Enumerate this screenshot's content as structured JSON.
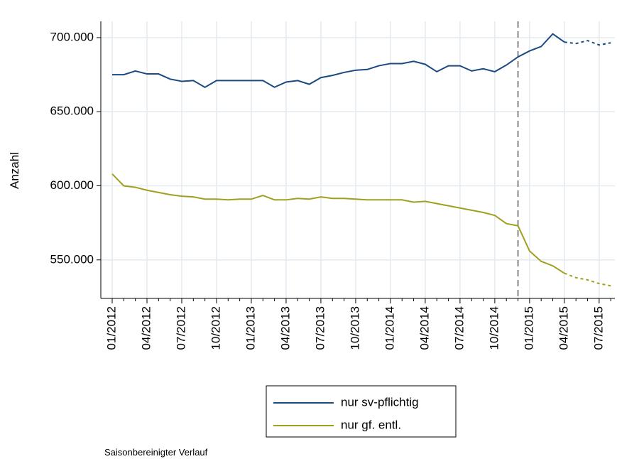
{
  "chart_data": {
    "type": "line",
    "y_label": "Anzahl",
    "footnote": "Saisonbereinigter Verlauf",
    "categories": [
      "01/2012",
      null,
      null,
      "04/2012",
      null,
      null,
      "07/2012",
      null,
      null,
      "10/2012",
      null,
      null,
      "01/2013",
      null,
      null,
      "04/2013",
      null,
      null,
      "07/2013",
      null,
      null,
      "10/2013",
      null,
      null,
      "01/2014",
      null,
      null,
      "04/2014",
      null,
      null,
      "07/2014",
      null,
      null,
      "10/2014",
      null,
      null,
      "01/2015",
      null,
      null,
      "04/2015",
      null,
      null,
      "07/2015",
      null
    ],
    "series": [
      {
        "name": "nur sv-pflichtig",
        "color": "#1a4a80",
        "values": [
          675000,
          675000,
          677500,
          675500,
          675500,
          672000,
          670500,
          671000,
          666500,
          671000,
          671000,
          671000,
          671000,
          671000,
          666500,
          670000,
          671000,
          668500,
          673000,
          674500,
          676500,
          678000,
          678500,
          681000,
          682500,
          682500,
          684000,
          682000,
          677000,
          681000,
          681000,
          677500,
          679000,
          677000,
          681500,
          687000,
          691000,
          694000,
          702500,
          697000,
          696000,
          698000,
          695000,
          696500
        ]
      },
      {
        "name": "nur gf. entl.",
        "color": "#a0a020",
        "values": [
          608000,
          600000,
          599000,
          597000,
          595500,
          594000,
          593000,
          592500,
          591000,
          591000,
          590500,
          591000,
          591000,
          593500,
          590500,
          590500,
          591500,
          591000,
          592500,
          591500,
          591500,
          591000,
          590500,
          590500,
          590500,
          590500,
          589000,
          589500,
          588000,
          586500,
          585000,
          583500,
          582000,
          580000,
          574500,
          573000,
          556000,
          549000,
          546000,
          541000,
          538000,
          536500,
          534000,
          532500
        ]
      }
    ],
    "ylim": [
      524000,
      711000
    ],
    "yticks": [
      {
        "value": 550000,
        "label": "550.000"
      },
      {
        "value": 600000,
        "label": "600.000"
      },
      {
        "value": 650000,
        "label": "650.000"
      },
      {
        "value": 700000,
        "label": "700.000"
      }
    ],
    "grid": true,
    "vline_index": 35,
    "dashed_from_index": 39,
    "legend": "bottom"
  }
}
